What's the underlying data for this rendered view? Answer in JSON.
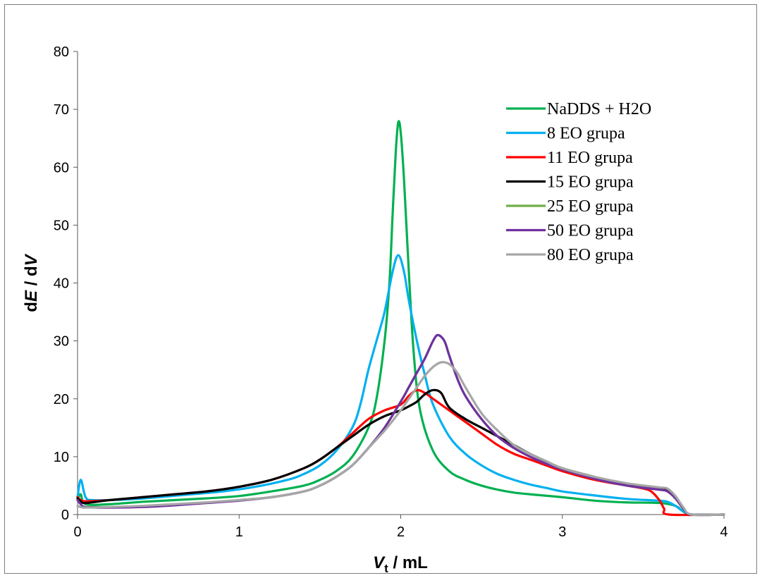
{
  "chart_data": {
    "type": "line",
    "xlabel_main": "V",
    "xlabel_sub": "t",
    "xlabel_unit": " / mL",
    "ylabel_pre": "d",
    "ylabel_e": "E",
    "ylabel_mid": " / d",
    "ylabel_v": "V",
    "xlim": [
      0,
      4
    ],
    "ylim": [
      0,
      80
    ],
    "x_ticks": [
      "0",
      "1",
      "2",
      "3",
      "4"
    ],
    "y_ticks": [
      "0",
      "10",
      "20",
      "30",
      "40",
      "50",
      "60",
      "70",
      "80"
    ],
    "grid": false,
    "legend_position": "top-right",
    "series": [
      {
        "name": "NaDDS + H2O",
        "color": "#00b050",
        "points": [
          [
            0,
            2.5
          ],
          [
            0.02,
            3.5
          ],
          [
            0.05,
            1.8
          ],
          [
            0.2,
            1.8
          ],
          [
            0.4,
            2.2
          ],
          [
            0.6,
            2.5
          ],
          [
            0.8,
            2.8
          ],
          [
            1.0,
            3.2
          ],
          [
            1.2,
            4.0
          ],
          [
            1.4,
            5.0
          ],
          [
            1.5,
            6.0
          ],
          [
            1.6,
            7.5
          ],
          [
            1.7,
            10.0
          ],
          [
            1.8,
            15.0
          ],
          [
            1.85,
            20.0
          ],
          [
            1.9,
            30.0
          ],
          [
            1.93,
            40.0
          ],
          [
            1.95,
            52.0
          ],
          [
            1.97,
            63.0
          ],
          [
            1.985,
            67.8
          ],
          [
            2.0,
            66.0
          ],
          [
            2.02,
            58.0
          ],
          [
            2.05,
            42.0
          ],
          [
            2.08,
            28.0
          ],
          [
            2.12,
            18.0
          ],
          [
            2.2,
            11.0
          ],
          [
            2.3,
            7.5
          ],
          [
            2.4,
            6.0
          ],
          [
            2.5,
            5.0
          ],
          [
            2.6,
            4.3
          ],
          [
            2.7,
            3.8
          ],
          [
            2.8,
            3.5
          ],
          [
            3.0,
            3.0
          ],
          [
            3.2,
            2.4
          ],
          [
            3.4,
            2.1
          ],
          [
            3.6,
            2.0
          ],
          [
            3.7,
            1.5
          ],
          [
            3.75,
            0.5
          ],
          [
            3.8,
            0.0
          ],
          [
            4.0,
            0.0
          ]
        ]
      },
      {
        "name": "8 EO grupa",
        "color": "#00b0f0",
        "points": [
          [
            0,
            3.0
          ],
          [
            0.02,
            6.0
          ],
          [
            0.05,
            3.0
          ],
          [
            0.1,
            2.5
          ],
          [
            0.3,
            2.6
          ],
          [
            0.5,
            3.0
          ],
          [
            0.7,
            3.5
          ],
          [
            0.9,
            4.0
          ],
          [
            1.1,
            4.8
          ],
          [
            1.3,
            6.0
          ],
          [
            1.4,
            7.0
          ],
          [
            1.5,
            8.5
          ],
          [
            1.6,
            11.0
          ],
          [
            1.7,
            15.0
          ],
          [
            1.75,
            19.0
          ],
          [
            1.8,
            25.0
          ],
          [
            1.85,
            30.0
          ],
          [
            1.9,
            35.0
          ],
          [
            1.95,
            42.0
          ],
          [
            1.985,
            44.8
          ],
          [
            2.02,
            42.0
          ],
          [
            2.05,
            37.0
          ],
          [
            2.1,
            30.0
          ],
          [
            2.15,
            24.0
          ],
          [
            2.2,
            19.0
          ],
          [
            2.3,
            13.5
          ],
          [
            2.4,
            10.5
          ],
          [
            2.5,
            8.5
          ],
          [
            2.6,
            7.0
          ],
          [
            2.7,
            6.0
          ],
          [
            2.8,
            5.2
          ],
          [
            2.9,
            4.6
          ],
          [
            3.0,
            4.0
          ],
          [
            3.2,
            3.3
          ],
          [
            3.4,
            2.7
          ],
          [
            3.6,
            2.4
          ],
          [
            3.65,
            2.2
          ],
          [
            3.7,
            1.5
          ],
          [
            3.75,
            0.5
          ],
          [
            3.8,
            0.0
          ],
          [
            4.0,
            0.0
          ]
        ]
      },
      {
        "name": "11 EO grupa",
        "color": "#ff0000",
        "points": [
          [
            0,
            3.0
          ],
          [
            0.02,
            2.5
          ],
          [
            0.05,
            2.3
          ],
          [
            0.2,
            2.5
          ],
          [
            0.4,
            3.0
          ],
          [
            0.6,
            3.5
          ],
          [
            0.8,
            4.0
          ],
          [
            1.0,
            4.8
          ],
          [
            1.2,
            6.0
          ],
          [
            1.4,
            8.0
          ],
          [
            1.5,
            9.5
          ],
          [
            1.6,
            11.5
          ],
          [
            1.7,
            14.0
          ],
          [
            1.8,
            16.5
          ],
          [
            1.9,
            18.0
          ],
          [
            2.0,
            19.0
          ],
          [
            2.05,
            20.5
          ],
          [
            2.1,
            21.5
          ],
          [
            2.15,
            21.0
          ],
          [
            2.2,
            20.0
          ],
          [
            2.3,
            18.0
          ],
          [
            2.4,
            16.0
          ],
          [
            2.5,
            14.0
          ],
          [
            2.6,
            12.0
          ],
          [
            2.7,
            10.5
          ],
          [
            2.8,
            9.5
          ],
          [
            2.9,
            8.5
          ],
          [
            3.0,
            7.5
          ],
          [
            3.2,
            6.0
          ],
          [
            3.4,
            5.0
          ],
          [
            3.5,
            4.5
          ],
          [
            3.55,
            4.0
          ],
          [
            3.6,
            2.5
          ],
          [
            3.63,
            1.0
          ],
          [
            3.66,
            0.0
          ],
          [
            4.0,
            0.0
          ]
        ]
      },
      {
        "name": "15 EO grupa",
        "color": "#000000",
        "points": [
          [
            0,
            2.8
          ],
          [
            0.02,
            2.3
          ],
          [
            0.05,
            2.0
          ],
          [
            0.2,
            2.5
          ],
          [
            0.4,
            3.0
          ],
          [
            0.6,
            3.5
          ],
          [
            0.8,
            4.0
          ],
          [
            1.0,
            4.8
          ],
          [
            1.2,
            6.0
          ],
          [
            1.4,
            8.0
          ],
          [
            1.5,
            9.5
          ],
          [
            1.6,
            11.5
          ],
          [
            1.7,
            13.5
          ],
          [
            1.8,
            15.5
          ],
          [
            1.9,
            17.0
          ],
          [
            2.0,
            18.0
          ],
          [
            2.05,
            18.7
          ],
          [
            2.1,
            19.5
          ],
          [
            2.15,
            20.8
          ],
          [
            2.2,
            21.5
          ],
          [
            2.25,
            21.0
          ],
          [
            2.3,
            18.5
          ],
          [
            2.4,
            16.5
          ],
          [
            2.5,
            15.0
          ],
          [
            2.6,
            13.5
          ],
          [
            2.7,
            12.0
          ],
          [
            2.8,
            10.5
          ],
          [
            2.9,
            9.2
          ],
          [
            3.0,
            8.0
          ],
          [
            3.2,
            6.5
          ],
          [
            3.4,
            5.3
          ],
          [
            3.6,
            4.6
          ],
          [
            3.65,
            4.4
          ],
          [
            3.7,
            3.0
          ],
          [
            3.75,
            1.0
          ],
          [
            3.8,
            0.0
          ],
          [
            4.0,
            0.0
          ]
        ]
      },
      {
        "name": "25 EO grupa",
        "color": "#70ad47",
        "points": [
          [
            0,
            2.5
          ],
          [
            0.02,
            1.8
          ],
          [
            0.05,
            1.3
          ],
          [
            0.2,
            1.3
          ],
          [
            0.4,
            1.4
          ],
          [
            0.6,
            1.7
          ],
          [
            0.8,
            2.0
          ],
          [
            1.0,
            2.5
          ],
          [
            1.2,
            3.0
          ],
          [
            1.4,
            4.0
          ],
          [
            1.5,
            5.0
          ],
          [
            1.6,
            6.5
          ],
          [
            1.7,
            8.5
          ],
          [
            1.8,
            11.5
          ],
          [
            1.9,
            15.0
          ],
          [
            2.0,
            19.5
          ],
          [
            2.05,
            22.0
          ],
          [
            2.1,
            24.5
          ],
          [
            2.15,
            27.0
          ],
          [
            2.2,
            30.0
          ],
          [
            2.23,
            31.0
          ],
          [
            2.27,
            30.0
          ],
          [
            2.3,
            27.5
          ],
          [
            2.35,
            23.5
          ],
          [
            2.4,
            20.5
          ],
          [
            2.5,
            16.5
          ],
          [
            2.6,
            13.5
          ],
          [
            2.7,
            11.5
          ],
          [
            2.8,
            10.0
          ],
          [
            2.9,
            8.8
          ],
          [
            3.0,
            7.8
          ],
          [
            3.2,
            6.2
          ],
          [
            3.4,
            5.0
          ],
          [
            3.6,
            4.3
          ],
          [
            3.65,
            4.0
          ],
          [
            3.7,
            2.8
          ],
          [
            3.75,
            1.0
          ],
          [
            3.8,
            0.0
          ],
          [
            4.0,
            0.0
          ]
        ]
      },
      {
        "name": "50 EO grupa",
        "color": "#7030a0",
        "points": [
          [
            0,
            2.5
          ],
          [
            0.02,
            1.8
          ],
          [
            0.05,
            1.3
          ],
          [
            0.2,
            1.2
          ],
          [
            0.4,
            1.3
          ],
          [
            0.6,
            1.6
          ],
          [
            0.8,
            2.0
          ],
          [
            1.0,
            2.4
          ],
          [
            1.2,
            3.0
          ],
          [
            1.4,
            4.0
          ],
          [
            1.5,
            5.0
          ],
          [
            1.6,
            6.5
          ],
          [
            1.7,
            8.5
          ],
          [
            1.8,
            11.5
          ],
          [
            1.9,
            15.0
          ],
          [
            2.0,
            19.5
          ],
          [
            2.05,
            22.0
          ],
          [
            2.1,
            24.5
          ],
          [
            2.15,
            27.0
          ],
          [
            2.2,
            30.0
          ],
          [
            2.23,
            31.0
          ],
          [
            2.27,
            30.0
          ],
          [
            2.3,
            27.5
          ],
          [
            2.35,
            23.5
          ],
          [
            2.4,
            20.5
          ],
          [
            2.5,
            16.5
          ],
          [
            2.6,
            13.5
          ],
          [
            2.7,
            11.5
          ],
          [
            2.8,
            10.0
          ],
          [
            2.9,
            8.8
          ],
          [
            3.0,
            7.8
          ],
          [
            3.2,
            6.2
          ],
          [
            3.4,
            5.0
          ],
          [
            3.6,
            4.3
          ],
          [
            3.65,
            4.0
          ],
          [
            3.7,
            2.8
          ],
          [
            3.75,
            1.0
          ],
          [
            3.8,
            0.0
          ],
          [
            4.0,
            0.0
          ]
        ]
      },
      {
        "name": "80 EO grupa",
        "color": "#a6a6a6",
        "points": [
          [
            0,
            1.5
          ],
          [
            0.02,
            1.3
          ],
          [
            0.05,
            1.2
          ],
          [
            0.2,
            1.3
          ],
          [
            0.4,
            1.5
          ],
          [
            0.6,
            1.8
          ],
          [
            0.8,
            2.1
          ],
          [
            1.0,
            2.5
          ],
          [
            1.2,
            3.0
          ],
          [
            1.4,
            4.0
          ],
          [
            1.5,
            5.0
          ],
          [
            1.6,
            6.5
          ],
          [
            1.7,
            8.5
          ],
          [
            1.8,
            11.5
          ],
          [
            1.9,
            14.5
          ],
          [
            2.0,
            18.0
          ],
          [
            2.05,
            20.0
          ],
          [
            2.1,
            22.0
          ],
          [
            2.15,
            24.0
          ],
          [
            2.2,
            25.5
          ],
          [
            2.25,
            26.3
          ],
          [
            2.3,
            26.0
          ],
          [
            2.35,
            24.5
          ],
          [
            2.4,
            22.0
          ],
          [
            2.5,
            17.5
          ],
          [
            2.6,
            14.5
          ],
          [
            2.7,
            12.0
          ],
          [
            2.8,
            10.5
          ],
          [
            2.9,
            9.2
          ],
          [
            3.0,
            8.0
          ],
          [
            3.2,
            6.5
          ],
          [
            3.4,
            5.4
          ],
          [
            3.6,
            4.7
          ],
          [
            3.65,
            4.5
          ],
          [
            3.7,
            3.2
          ],
          [
            3.75,
            1.2
          ],
          [
            3.8,
            0.0
          ],
          [
            4.0,
            0.0
          ]
        ]
      }
    ]
  }
}
